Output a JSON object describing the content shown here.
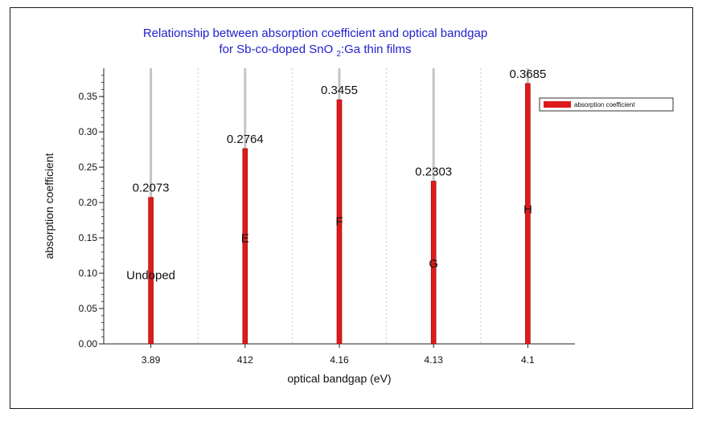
{
  "chart_data": {
    "type": "bar",
    "title_line1": "Relationship between absorption coefficient and optical bandgap",
    "title_line2_pre": "for Sb-co-doped SnO",
    "title_line2_sub": "2",
    "title_line2_post": ":Ga thin films",
    "xlabel": "optical bandgap (eV)",
    "ylabel": "absorption coefficient",
    "categories": [
      "3.89",
      "412",
      "4.16",
      "4.13",
      "4.1"
    ],
    "series": [
      {
        "name": "absorption coefficient",
        "color": "#dd1b1b",
        "values": [
          0.2073,
          0.2764,
          0.3455,
          0.2303,
          0.3685
        ]
      }
    ],
    "data_labels": [
      "0.2073",
      "0.2764",
      "0.3455",
      "0.2303",
      "0.3685"
    ],
    "annotations": [
      "Undoped",
      "E",
      "F",
      "G",
      "H"
    ],
    "ylim": [
      0,
      0.39
    ],
    "yticks": [
      "0.00",
      "0.05",
      "0.10",
      "0.15",
      "0.20",
      "0.25",
      "0.30",
      "0.35"
    ],
    "ytick_values": [
      0,
      0.05,
      0.1,
      0.15,
      0.2,
      0.25,
      0.3,
      0.35
    ],
    "grid": true,
    "legend_position": "right"
  }
}
